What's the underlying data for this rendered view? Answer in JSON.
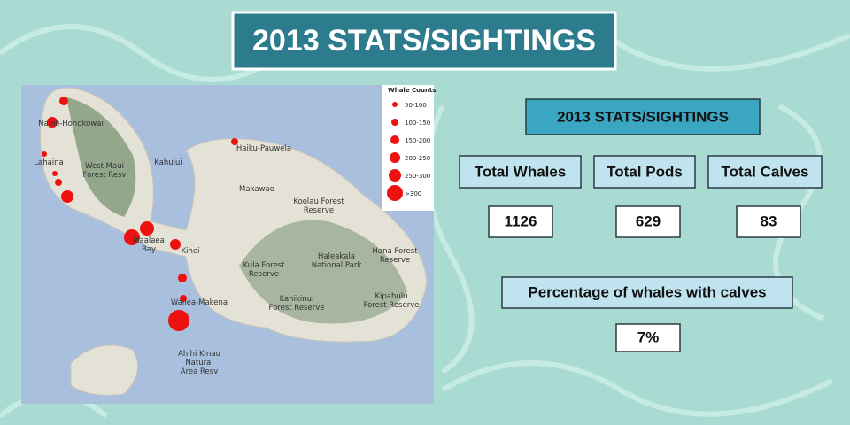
{
  "header": {
    "title": "2013 STATS/SIGHTINGS"
  },
  "map": {
    "places": [
      {
        "lines": [
          "Napili-Honokowai"
        ]
      },
      {
        "lines": [
          "Lahaina"
        ]
      },
      {
        "lines": [
          "West Maui",
          "Forest Resv"
        ]
      },
      {
        "lines": [
          "Kahului"
        ]
      },
      {
        "lines": [
          "Haiku-Pauwela"
        ]
      },
      {
        "lines": [
          "Makawao"
        ]
      },
      {
        "lines": [
          "Maalaea",
          "Bay"
        ]
      },
      {
        "lines": [
          "Kihei"
        ]
      },
      {
        "lines": [
          "Wailea-Makena"
        ]
      },
      {
        "lines": [
          "Koolau Forest",
          "Reserve"
        ]
      },
      {
        "lines": [
          "Haleakala",
          "National Park"
        ]
      },
      {
        "lines": [
          "Hana Forest",
          "Reserve"
        ]
      },
      {
        "lines": [
          "Kula Forest",
          "Reserve"
        ]
      },
      {
        "lines": [
          "Kahikinui",
          "Forest Reserve"
        ]
      },
      {
        "lines": [
          "Kipahulu",
          "Forest Reserve"
        ]
      },
      {
        "lines": [
          "Ahihi Kinau",
          "Natural",
          "Area Resv"
        ]
      }
    ],
    "legend": {
      "title": "Whale Counts",
      "entries": [
        "50-100",
        "100-150",
        "150-200",
        "200-250",
        "250-300",
        ">300"
      ]
    }
  },
  "stats": {
    "heading": "2013 STATS/SIGHTINGS",
    "items": [
      {
        "label": "Total Whales",
        "value": "1126"
      },
      {
        "label": "Total Pods",
        "value": "629"
      },
      {
        "label": "Total Calves",
        "value": "83"
      }
    ],
    "percentage": {
      "label": "Percentage of whales with calves",
      "value": "7%"
    }
  }
}
